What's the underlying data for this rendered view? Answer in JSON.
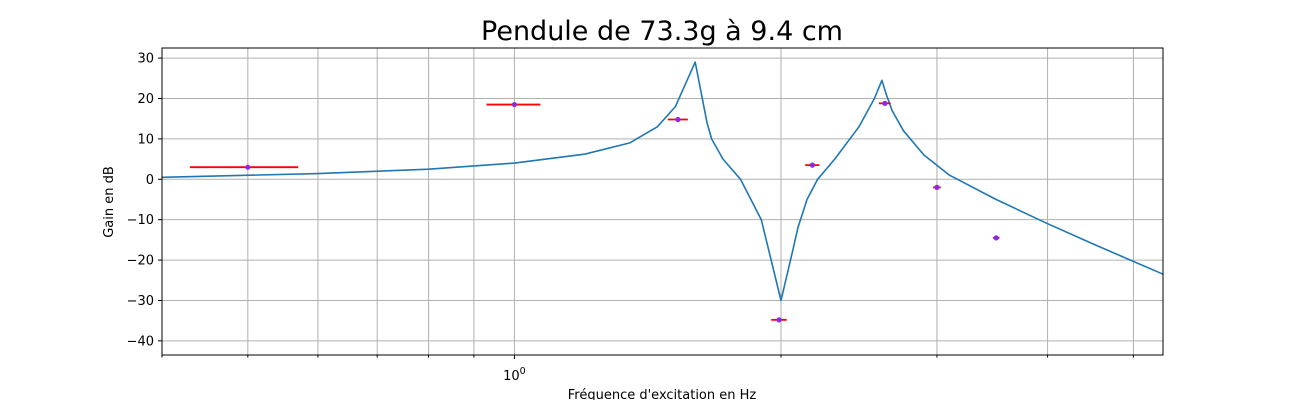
{
  "chart_data": {
    "type": "line",
    "title": "Pendule de 73.3g à 9.4 cm",
    "xlabel": "Fréquence d'excitation en Hz",
    "ylabel": "Gain en dB",
    "x_scale": "log",
    "xlim": [
      0.4,
      5.4
    ],
    "ylim": [
      -43.5,
      32.5
    ],
    "grid": true,
    "x_major_ticks": [
      {
        "value": 1,
        "label": "10^0"
      }
    ],
    "x_minor_ticks": [
      0.4,
      0.5,
      0.6,
      0.7,
      0.8,
      0.9,
      2,
      3,
      4,
      5
    ],
    "y_ticks": [
      -40,
      -30,
      -20,
      -10,
      0,
      10,
      20,
      30
    ],
    "series": [
      {
        "kind": "line",
        "color": "#1f77b4",
        "x": [
          0.4,
          0.6,
          0.8,
          1.0,
          1.2,
          1.35,
          1.45,
          1.52,
          1.6,
          1.63,
          1.65,
          1.67,
          1.72,
          1.8,
          1.9,
          2.0,
          2.06,
          2.09,
          2.14,
          2.2,
          2.3,
          2.45,
          2.55,
          2.6,
          2.63,
          2.67,
          2.75,
          2.9,
          3.1,
          3.5,
          4.0,
          4.5,
          5.4
        ],
        "y": [
          0.5,
          1.4,
          2.5,
          4.0,
          6.2,
          9.0,
          13.0,
          18.0,
          29.0,
          20.0,
          14.0,
          10.0,
          5.0,
          0.0,
          -10.0,
          -30.0,
          -18.0,
          -12.0,
          -5.0,
          0.0,
          5.0,
          13.0,
          20.0,
          24.5,
          21.0,
          17.0,
          12.0,
          6.0,
          1.0,
          -5.0,
          -11.0,
          -16.0,
          -23.5
        ]
      },
      {
        "kind": "points",
        "marker_color": "#8a2be2",
        "error_color": "#ff0000",
        "x": [
          0.5,
          1.0,
          1.53,
          1.99,
          2.17,
          2.62,
          3.0,
          3.5
        ],
        "y": [
          3.0,
          18.5,
          14.8,
          -34.8,
          3.5,
          18.8,
          -2.0,
          -14.5
        ],
        "x_error": [
          0.07,
          0.07,
          0.04,
          0.04,
          0.04,
          0.04,
          0.03,
          0.03
        ]
      }
    ]
  }
}
